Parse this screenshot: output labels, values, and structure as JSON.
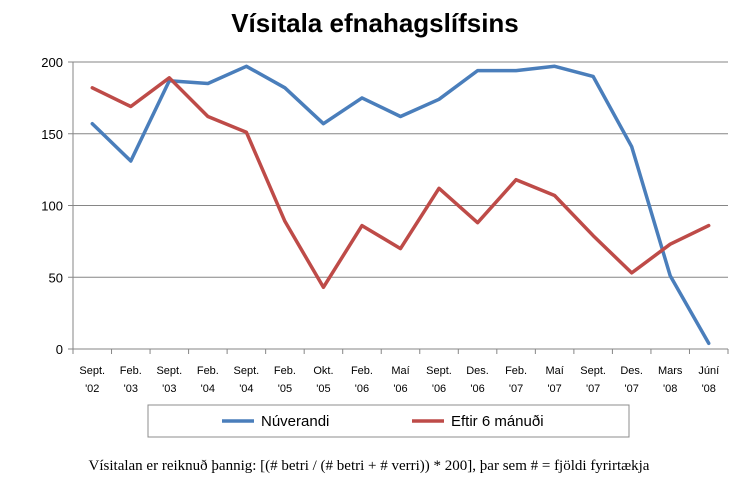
{
  "chart_data": {
    "type": "line",
    "title": "Vísitala efnahagslífsins",
    "categories": [
      [
        "Sept.",
        "'02"
      ],
      [
        "Feb.",
        "'03"
      ],
      [
        "Sept.",
        "'03"
      ],
      [
        "Feb.",
        "'04"
      ],
      [
        "Sept.",
        "'04"
      ],
      [
        "Feb.",
        "'05"
      ],
      [
        "Okt.",
        "'05"
      ],
      [
        "Feb.",
        "'06"
      ],
      [
        "Maí",
        "'06"
      ],
      [
        "Sept.",
        "'06"
      ],
      [
        "Des.",
        "'06"
      ],
      [
        "Feb.",
        "'07"
      ],
      [
        "Maí",
        "'07"
      ],
      [
        "Sept.",
        "'07"
      ],
      [
        "Des.",
        "'07"
      ],
      [
        "Mars",
        "'08"
      ],
      [
        "Júní",
        "'08"
      ]
    ],
    "yticks": [
      "0",
      "50",
      "100",
      "150",
      "200"
    ],
    "ylim": [
      0,
      200
    ],
    "grid": true,
    "legend_position": "bottom",
    "series": [
      {
        "name": "Núverandi",
        "color": "#4a7ebb",
        "values": [
          157,
          131,
          187,
          185,
          197,
          182,
          157,
          175,
          162,
          174,
          194,
          194,
          197,
          190,
          141,
          51,
          4
        ]
      },
      {
        "name": "Eftir 6 mánuði",
        "color": "#be4b48",
        "values": [
          182,
          169,
          189,
          162,
          151,
          89,
          43,
          86,
          70,
          112,
          88,
          118,
          107,
          79,
          53,
          73,
          86
        ]
      }
    ]
  },
  "footnote": "Vísitalan er reiknuð þannig: [(# betri / (# betri + # verri)) * 200], þar sem # = fjöldi fyrirtækja"
}
